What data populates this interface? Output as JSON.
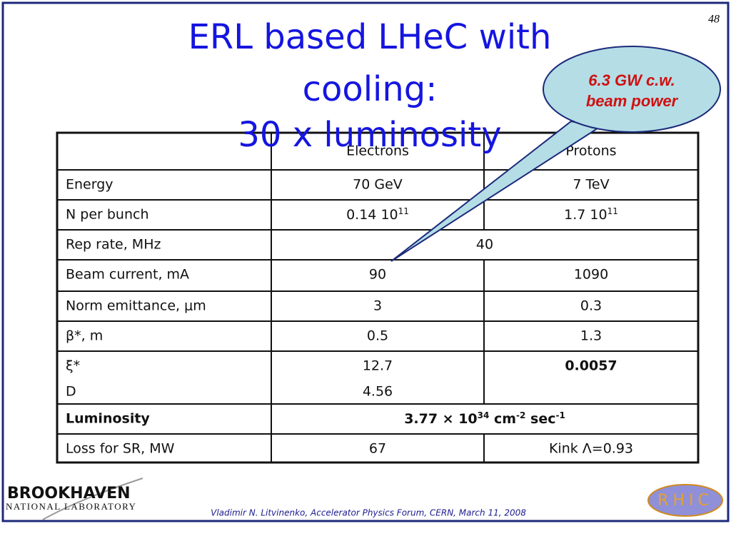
{
  "page_number": "48",
  "title": {
    "lines": [
      "ERL based LHeC with",
      "cooling:",
      "30 x luminosity"
    ]
  },
  "callout": {
    "lines": [
      "6.3 GW c.w.",
      "beam power"
    ]
  },
  "table": {
    "header": [
      "Electrons",
      "Protons"
    ],
    "rows": [
      {
        "label": "Energy",
        "values": [
          "70 GeV",
          "7 TeV"
        ]
      },
      {
        "label": "N per bunch",
        "values": [
          {
            "parts": [
              {
                "text": "0.14 10"
              },
              {
                "sup": "11"
              }
            ]
          },
          {
            "parts": [
              {
                "text": "1.7 10"
              },
              {
                "sup": "11"
              }
            ]
          }
        ]
      },
      {
        "label": "Rep rate, MHz",
        "values": [
          "40"
        ]
      },
      {
        "label": "Beam current, mA",
        "values": [
          "90",
          "1090"
        ]
      },
      {
        "label": "Norm emittance, μm",
        "values": [
          "3",
          "0.3"
        ]
      },
      {
        "label": "β*, m",
        "values": [
          "0.5",
          "1.3"
        ]
      },
      {
        "label": {
          "lines": [
            "ξ*",
            "D"
          ]
        },
        "values": [
          {
            "lines": [
              "12.7",
              "4.56"
            ]
          },
          "0.0057"
        ],
        "bold_values": [
          1
        ]
      },
      {
        "label": "Luminosity",
        "values": [
          {
            "parts": [
              {
                "text": "3.77 × 10"
              },
              {
                "sup": "34"
              },
              {
                "text": " cm"
              },
              {
                "sup": "-2"
              },
              {
                "text": " sec"
              },
              {
                "sup": "-1"
              }
            ]
          }
        ],
        "bold": true
      },
      {
        "label": "Loss for SR, MW",
        "values": [
          "67",
          "Kink Λ=0.93"
        ]
      }
    ]
  },
  "footer": {
    "logo": [
      "BROOKHAVEN",
      "NATIONAL LABORATORY"
    ],
    "credit": "Vladimir N. Litvinenko, Accelerator Physics Forum, CERN,  March 11, 2008",
    "badge": "RHIC"
  }
}
